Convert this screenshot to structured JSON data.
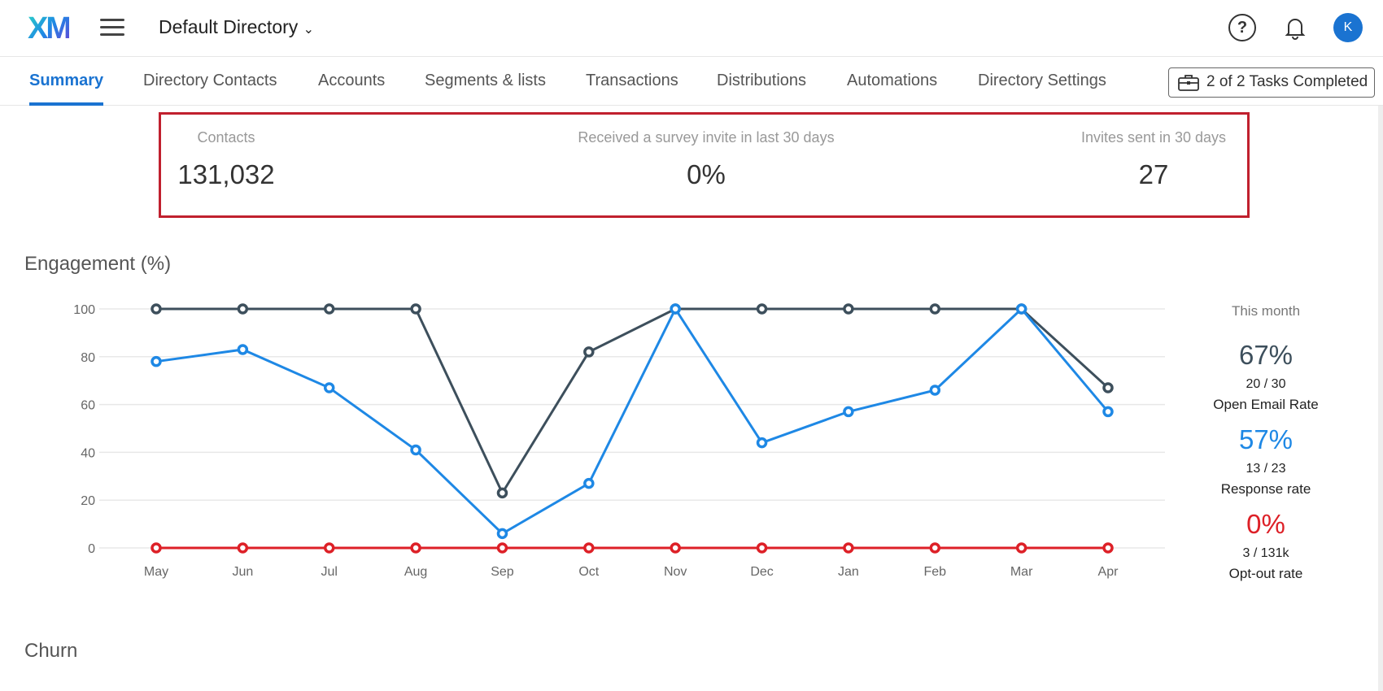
{
  "header": {
    "logo": "XM",
    "directory": "Default Directory"
  },
  "avatar_initial": "K",
  "tabs": [
    "Summary",
    "Directory Contacts",
    "Accounts",
    "Segments & lists",
    "Transactions",
    "Distributions",
    "Automations",
    "Directory Settings"
  ],
  "tasks_label": "2 of 2 Tasks Completed",
  "stats": [
    {
      "label": "Contacts",
      "value": "131,032"
    },
    {
      "label": "Received a survey invite in last 30 days",
      "value": "0%"
    },
    {
      "label": "Invites sent in 30 days",
      "value": "27"
    }
  ],
  "engagement_title": "Engagement (%)",
  "churn_title": "Churn",
  "this_month": {
    "title": "This month",
    "items": [
      {
        "pct": "67%",
        "ratio": "20 / 30",
        "label": "Open Email Rate",
        "color": "#3d4f5c"
      },
      {
        "pct": "57%",
        "ratio": "13 / 23",
        "label": "Response rate",
        "color": "#1e88e5"
      },
      {
        "pct": "0%",
        "ratio": "3 / 131k",
        "label": "Opt-out rate",
        "color": "#dd2027"
      }
    ]
  },
  "chart_data": {
    "type": "line",
    "categories": [
      "May",
      "Jun",
      "Jul",
      "Aug",
      "Sep",
      "Oct",
      "Nov",
      "Dec",
      "Jan",
      "Feb",
      "Mar",
      "Apr"
    ],
    "ylim": [
      0,
      100
    ],
    "yticks": [
      0,
      20,
      40,
      60,
      80,
      100
    ],
    "grid": true,
    "series": [
      {
        "values": [
          100,
          100,
          100,
          100,
          23,
          82,
          100,
          100,
          100,
          100,
          100,
          67
        ],
        "color": "#3d4f5c"
      },
      {
        "values": [
          78,
          83,
          67,
          41,
          6,
          27,
          100,
          44,
          57,
          66,
          100,
          57
        ],
        "color": "#1e88e5"
      },
      {
        "values": [
          0,
          0,
          0,
          0,
          0,
          0,
          0,
          0,
          0,
          0,
          0,
          0
        ],
        "color": "#dd2027"
      }
    ]
  }
}
